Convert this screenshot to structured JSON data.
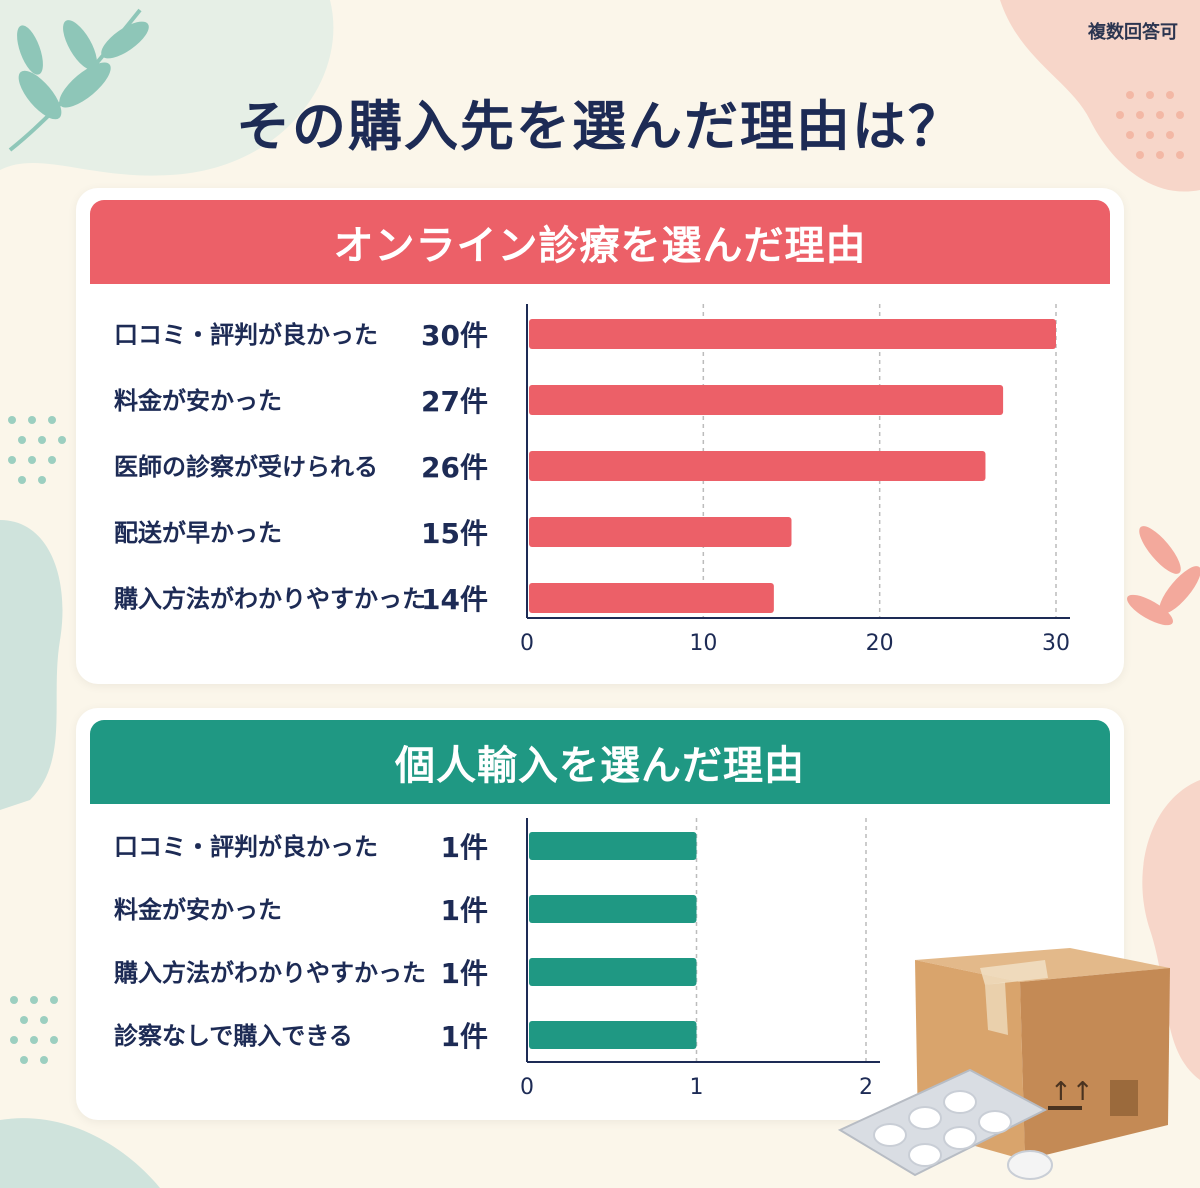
{
  "note": "複数回答可",
  "title": "その購入先を選んだ理由は？",
  "colors": {
    "background": "#fbf6ea",
    "title": "#1d2b55",
    "online_bar": "#ec6068",
    "import_bar": "#1f9883"
  },
  "chart_data": [
    {
      "type": "bar",
      "orientation": "horizontal",
      "title": "オンライン診療を選んだ理由",
      "categories": [
        "口コミ・評判が良かった",
        "料金が安かった",
        "医師の診察が受けられる",
        "配送が早かった",
        "購入方法がわかりやすかった"
      ],
      "values": [
        30,
        27,
        26,
        15,
        14
      ],
      "value_labels": [
        "30件",
        "27件",
        "26件",
        "15件",
        "14件"
      ],
      "xlim": [
        0,
        30
      ],
      "xticks": [
        0,
        10,
        20,
        30
      ],
      "grid": true,
      "color": "#ec6068"
    },
    {
      "type": "bar",
      "orientation": "horizontal",
      "title": "個人輸入を選んだ理由",
      "categories": [
        "口コミ・評判が良かった",
        "料金が安かった",
        "購入方法がわかりやすかった",
        "診察なしで購入できる"
      ],
      "values": [
        1,
        1,
        1,
        1
      ],
      "value_labels": [
        "1件",
        "1件",
        "1件",
        "1件"
      ],
      "xlim": [
        0,
        2
      ],
      "xticks": [
        0,
        1,
        2
      ],
      "grid": true,
      "color": "#1f9883"
    }
  ]
}
